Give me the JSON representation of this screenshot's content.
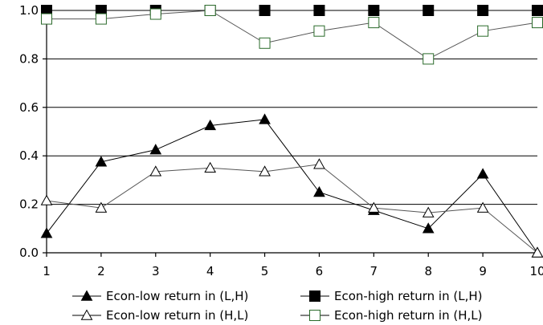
{
  "chart_data": {
    "type": "line",
    "title": "",
    "xlabel": "",
    "ylabel": "",
    "x": [
      1,
      2,
      3,
      4,
      5,
      6,
      7,
      8,
      9,
      10
    ],
    "xlim": [
      1,
      10
    ],
    "ylim": [
      0.0,
      1.0
    ],
    "x_ticks": [
      "1",
      "2",
      "3",
      "4",
      "5",
      "6",
      "7",
      "8",
      "9",
      "10"
    ],
    "y_ticks": [
      "0.0",
      "0.2",
      "0.4",
      "0.6",
      "0.8",
      "1.0"
    ],
    "grid": "horizontal",
    "legend_position": "bottom",
    "series": [
      {
        "name": "Econ-low return in (L,H)",
        "marker": "triangle-filled",
        "values": [
          0.08,
          0.375,
          0.425,
          0.525,
          0.55,
          0.25,
          0.175,
          0.1,
          0.325,
          0.0
        ]
      },
      {
        "name": "Econ-high return in (L,H)",
        "marker": "square-filled",
        "values": [
          1.0,
          1.0,
          1.0,
          1.0,
          1.0,
          1.0,
          1.0,
          1.0,
          1.0,
          1.0
        ]
      },
      {
        "name": "Econ-low return in (H,L)",
        "marker": "triangle-open",
        "values": [
          0.215,
          0.185,
          0.335,
          0.35,
          0.335,
          0.365,
          0.185,
          0.165,
          0.185,
          0.0
        ]
      },
      {
        "name": "Econ-high return in (H,L)",
        "marker": "square-open",
        "values": [
          0.965,
          0.965,
          0.985,
          1.0,
          0.865,
          0.915,
          0.95,
          0.8,
          0.915,
          0.95
        ]
      }
    ]
  }
}
